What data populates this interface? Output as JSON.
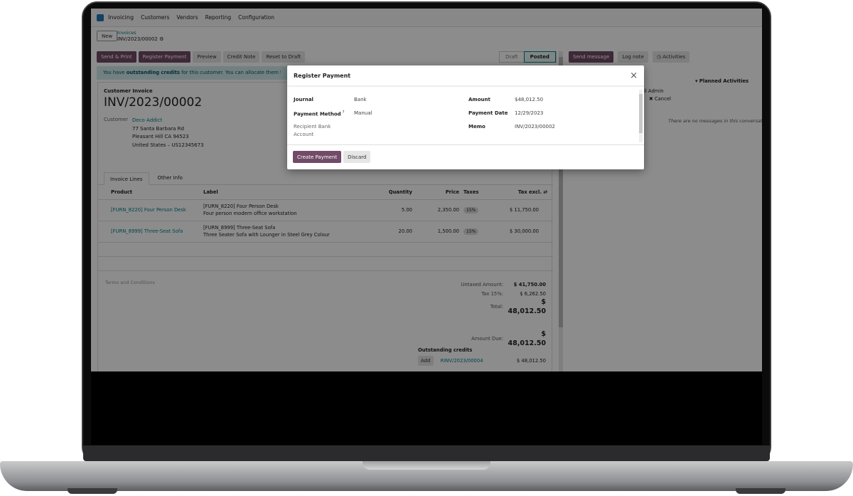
{
  "navbar": {
    "app": "Invoicing",
    "menus": [
      "Customers",
      "Vendors",
      "Reporting",
      "Configuration"
    ]
  },
  "breadcrumb": {
    "new": "New",
    "parent": "Invoices",
    "current": "INV/2023/00002"
  },
  "actions": [
    "Send & Print",
    "Register Payment",
    "Preview",
    "Credit Note",
    "Reset to Draft"
  ],
  "status": {
    "steps": [
      "Draft",
      "Posted"
    ],
    "active": "Posted"
  },
  "alert": {
    "pre": "You have ",
    "bold": "outstanding credits",
    "post": " for this customer. You can allocate them to mark t"
  },
  "invoice": {
    "type": "Customer Invoice",
    "number": "INV/2023/00002",
    "customer_label": "Customer",
    "customer": "Deco Addict",
    "address": [
      "77 Santa Barbara Rd",
      "Pleasant Hill CA 94523",
      "United States – US12345673"
    ]
  },
  "tabs": [
    "Invoice Lines",
    "Other Info"
  ],
  "lines": {
    "headers": [
      "Product",
      "Label",
      "Quantity",
      "Price",
      "Taxes",
      "Tax excl."
    ],
    "rows": [
      {
        "product": "[FURN_8220] Four Person Desk",
        "label1": "[FURN_8220] Four Person Desk",
        "label2": "Four person modern office workstation",
        "qty": "5.00",
        "price": "2,350.00",
        "tax": "15%",
        "total": "$ 11,750.00"
      },
      {
        "product": "[FURN_8999] Three-Seat Sofa",
        "label1": "[FURN_8999] Three-Seat Sofa",
        "label2": "Three Seater Sofa with Lounger in Steel Grey Colour",
        "qty": "20.00",
        "price": "1,500.00",
        "tax": "15%",
        "total": "$ 30,000.00"
      }
    ]
  },
  "terms": "Terms and Conditions",
  "totals": {
    "untaxed_label": "Untaxed Amount:",
    "untaxed": "$ 41,750.00",
    "tax_label": "Tax 15%:",
    "tax": "$ 6,262.50",
    "total_label": "Total:",
    "total": "$ 48,012.50",
    "due_label": "Amount Due:",
    "due": "$ 48,012.50"
  },
  "credits": {
    "title": "Outstanding credits",
    "add": "Add",
    "items": [
      {
        "ref": "RINV/2023/00004",
        "amount": "$ 48,012.50"
      }
    ]
  },
  "chatter": {
    "send": "Send message",
    "log": "Log note",
    "activities": "Activities",
    "planned": "Planned Activities",
    "admin": "il Admin",
    "cancel": "Cancel",
    "empty": "There are no messages in this conversatio"
  },
  "modal": {
    "title": "Register Payment",
    "journal_label": "Journal",
    "journal": "Bank",
    "method_label": "Payment Method",
    "method_help": "?",
    "method": "Manual",
    "recipient_label": "Recipient Bank Account",
    "amount_label": "Amount",
    "amount": "$48,012.50",
    "date_label": "Payment Date",
    "date": "12/29/2023",
    "memo_label": "Memo",
    "memo": "INV/2023/00002",
    "create": "Create Payment",
    "discard": "Discard"
  },
  "colors": {
    "primary": "#714b67",
    "link": "#017e84"
  }
}
